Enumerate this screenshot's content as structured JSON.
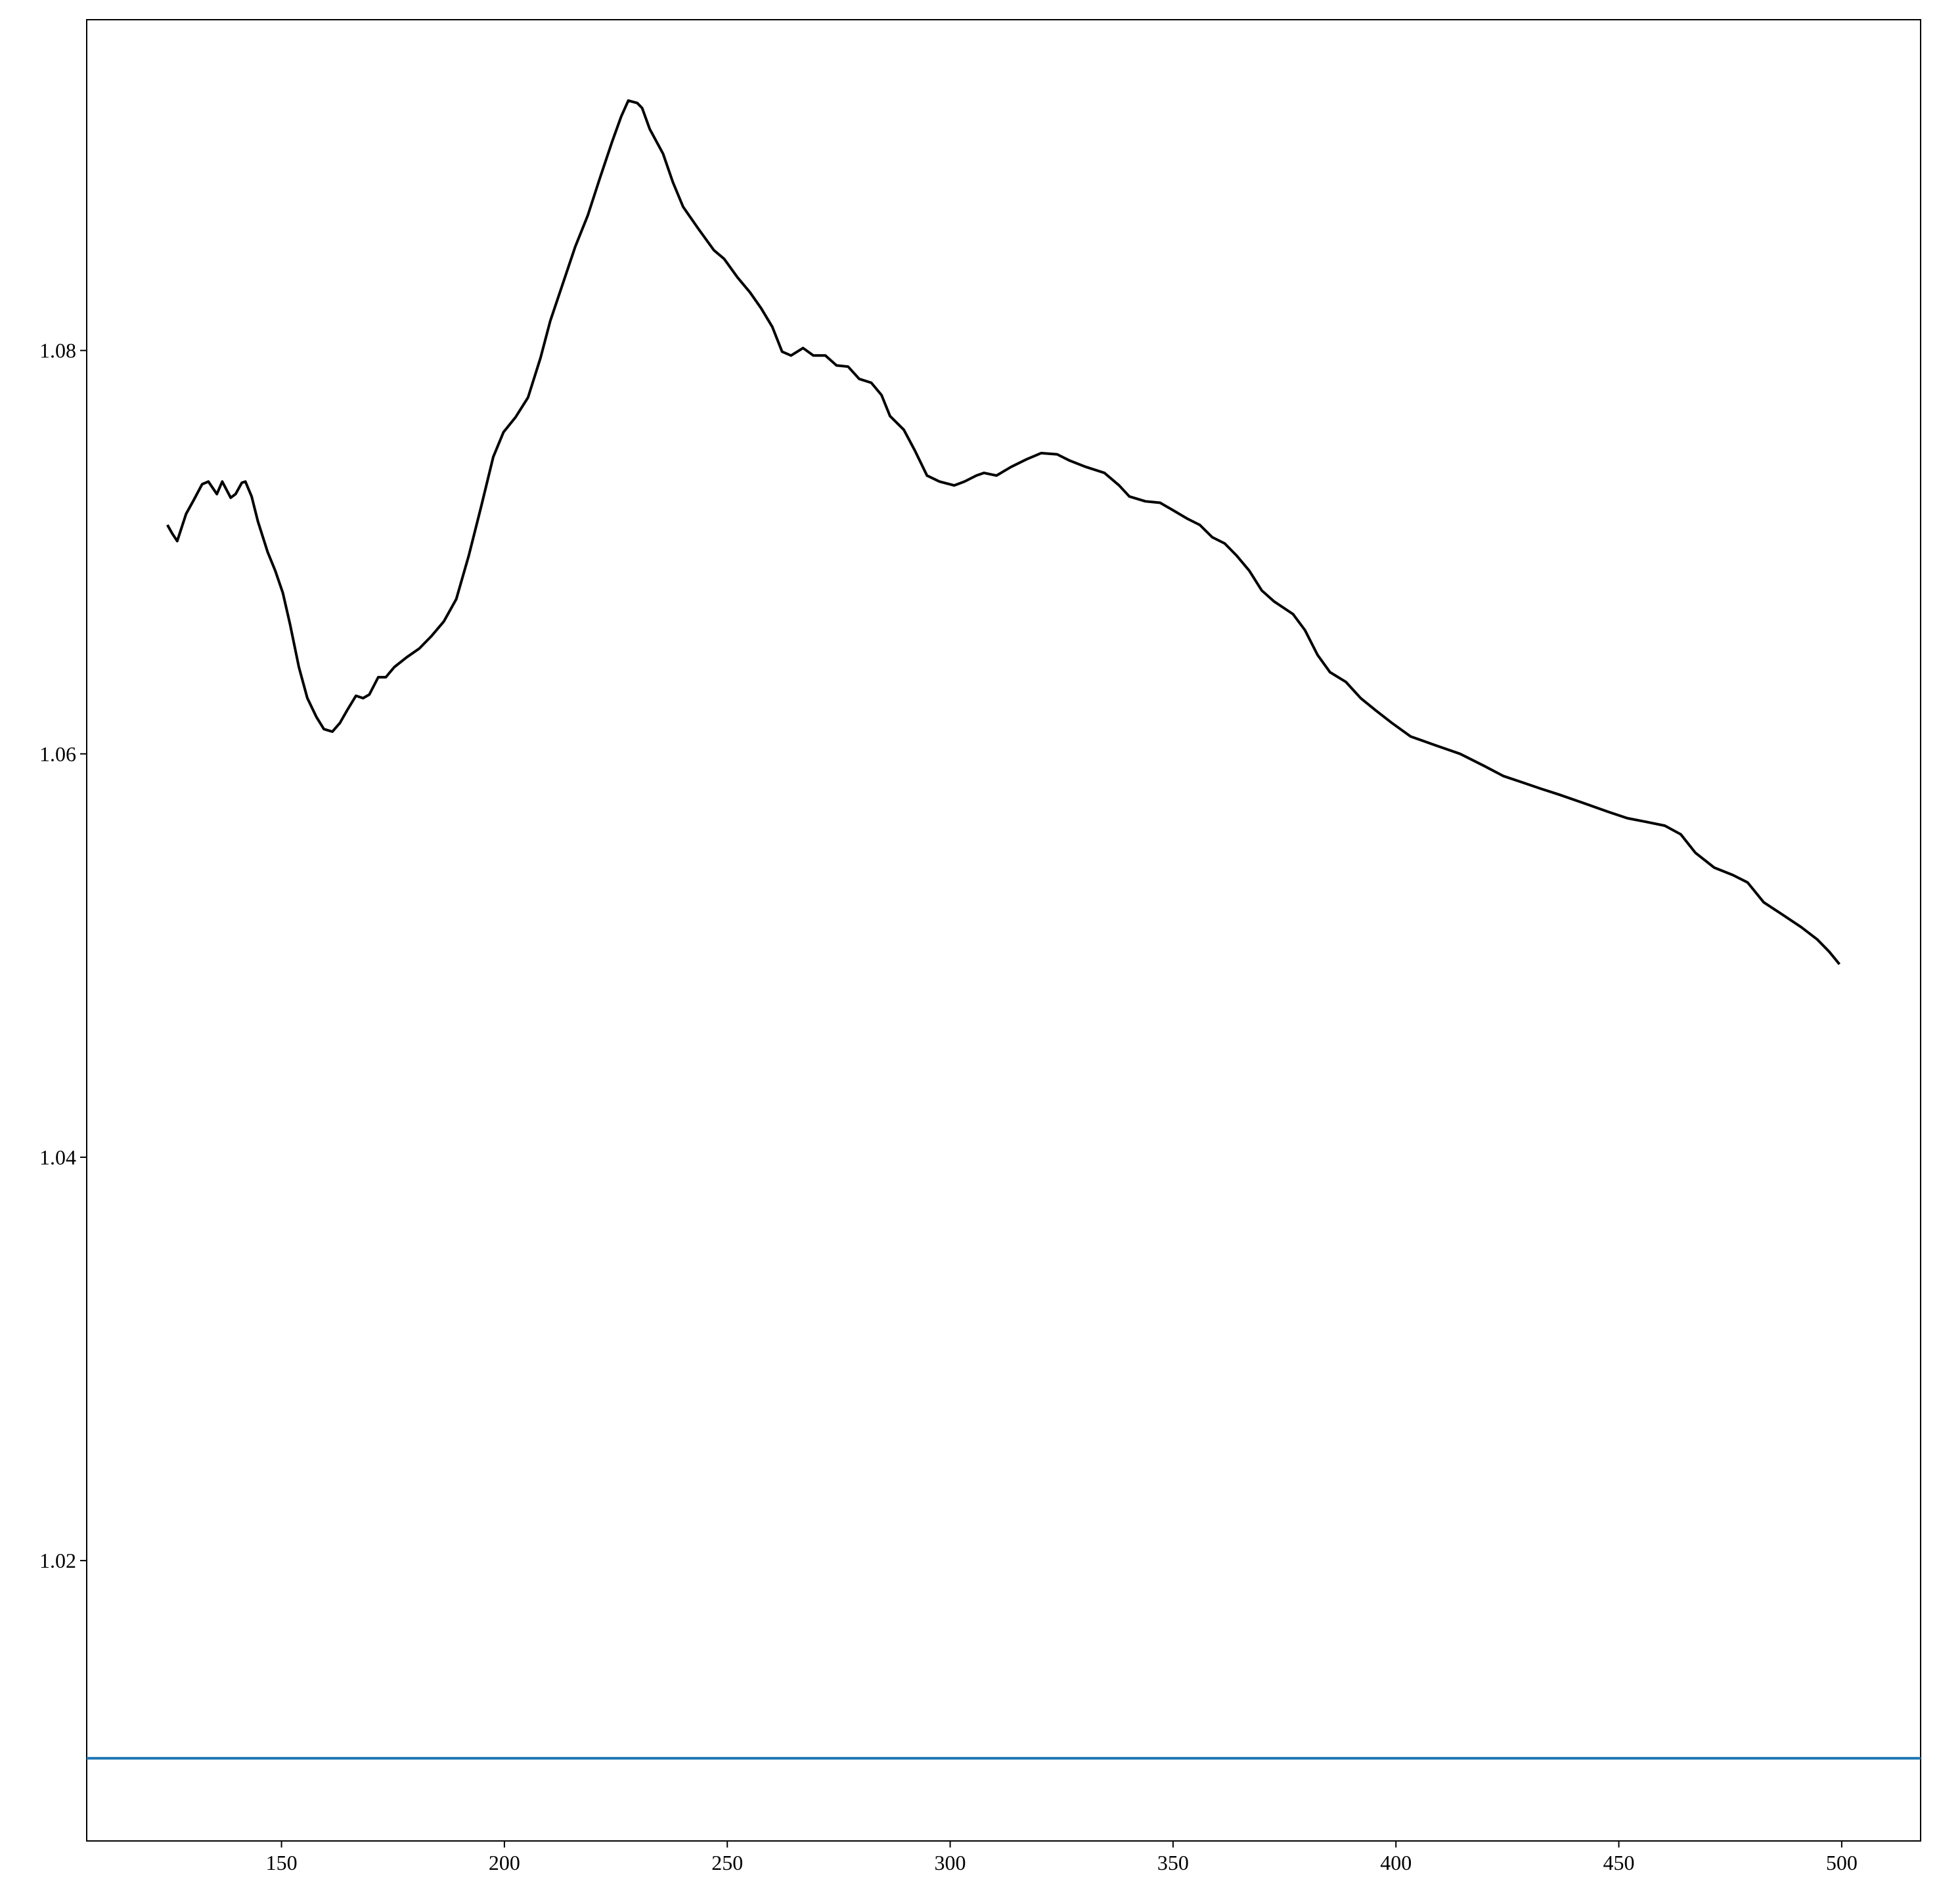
{
  "chart_data": {
    "type": "line",
    "x": [
      124.4,
      125.5,
      126.6,
      128.6,
      130.3,
      132.2,
      133.6,
      135.5,
      136.7,
      138.6,
      139.7,
      141.1,
      141.9,
      143.3,
      144.7,
      146.9,
      148.6,
      150.3,
      151.9,
      153.9,
      155.8,
      157.8,
      159.5,
      161.4,
      163.1,
      164.7,
      166.7,
      168.3,
      169.7,
      171.7,
      173.4,
      175.3,
      178.1,
      180.9,
      183.6,
      186.4,
      189.2,
      192,
      194.8,
      197.5,
      199.8,
      202.5,
      205.3,
      208.1,
      210.3,
      213.1,
      215.9,
      218.7,
      221.4,
      224.2,
      226.2,
      227.8,
      229.8,
      230.9,
      232.6,
      235.6,
      237.8,
      240.1,
      243.4,
      247,
      249.3,
      252.3,
      255.1,
      257.6,
      260.1,
      262.3,
      264.3,
      267,
      269.3,
      272,
      274.5,
      277.1,
      279.6,
      282.3,
      284.6,
      286.5,
      289.6,
      292.1,
      294.8,
      297.6,
      300.9,
      303.2,
      305.9,
      307.6,
      310.4,
      313.7,
      317.1,
      320.4,
      324,
      326.8,
      330.4,
      334.6,
      337.9,
      340.2,
      343.8,
      347.1,
      349.9,
      353.2,
      356,
      358.8,
      361.6,
      364.3,
      367.1,
      369.9,
      372.7,
      376.9,
      379.6,
      382.4,
      385.2,
      388.8,
      392.1,
      395.5,
      399.1,
      403.3,
      408.8,
      414.4,
      419.9,
      424.1,
      428.3,
      432.4,
      436.6,
      442.2,
      447.7,
      451.9,
      456.1,
      460.3,
      463.9,
      467.2,
      471.4,
      475.6,
      478.9,
      482.5,
      486.7,
      490.9,
      494.5,
      497.2,
      499.5
    ],
    "series": [
      {
        "color": "#000000",
        "values": [
          1.07135,
          1.07092,
          1.07055,
          1.0719,
          1.07258,
          1.07337,
          1.0735,
          1.07288,
          1.0735,
          1.0727,
          1.07288,
          1.07344,
          1.0735,
          1.07276,
          1.07153,
          1.07,
          1.06908,
          1.06798,
          1.06644,
          1.0643,
          1.06276,
          1.06184,
          1.06123,
          1.0611,
          1.06153,
          1.06215,
          1.06288,
          1.06276,
          1.06294,
          1.0638,
          1.0638,
          1.0643,
          1.06479,
          1.06522,
          1.06583,
          1.06656,
          1.06767,
          1.06982,
          1.07227,
          1.07472,
          1.07595,
          1.07669,
          1.07767,
          1.07963,
          1.08147,
          1.08331,
          1.08515,
          1.08669,
          1.08853,
          1.09037,
          1.0916,
          1.09239,
          1.09227,
          1.09202,
          1.09098,
          1.08975,
          1.08834,
          1.08712,
          1.08607,
          1.08497,
          1.08454,
          1.08362,
          1.08288,
          1.08209,
          1.08117,
          1.07994,
          1.07975,
          1.08012,
          1.07975,
          1.07975,
          1.07926,
          1.0792,
          1.07859,
          1.0784,
          1.07779,
          1.07675,
          1.07607,
          1.07503,
          1.0738,
          1.0735,
          1.07331,
          1.0735,
          1.0738,
          1.07393,
          1.0738,
          1.07423,
          1.0746,
          1.07491,
          1.07485,
          1.07454,
          1.07423,
          1.07393,
          1.07331,
          1.07276,
          1.07252,
          1.07245,
          1.07209,
          1.07166,
          1.07135,
          1.07074,
          1.07043,
          1.06982,
          1.06908,
          1.0681,
          1.06755,
          1.06693,
          1.06613,
          1.06491,
          1.06405,
          1.06356,
          1.06276,
          1.06215,
          1.06153,
          1.06086,
          1.06043,
          1.06,
          1.05939,
          1.0589,
          1.05859,
          1.05828,
          1.05798,
          1.05755,
          1.05712,
          1.05681,
          1.05663,
          1.05644,
          1.05601,
          1.05509,
          1.05436,
          1.05399,
          1.05362,
          1.05264,
          1.05203,
          1.05141,
          1.0508,
          1.05019,
          1.04957
        ]
      }
    ],
    "hlines": [
      {
        "value": 1.0102,
        "color": "#1f77b4"
      }
    ],
    "xlim": [
      106.3,
      517.7
    ],
    "ylim": [
      1.0061,
      1.0964
    ],
    "xticks": [
      150,
      200,
      250,
      300,
      350,
      400,
      450,
      500
    ],
    "yticks": [
      1.02,
      1.04,
      1.06,
      1.08
    ],
    "grid": false
  }
}
